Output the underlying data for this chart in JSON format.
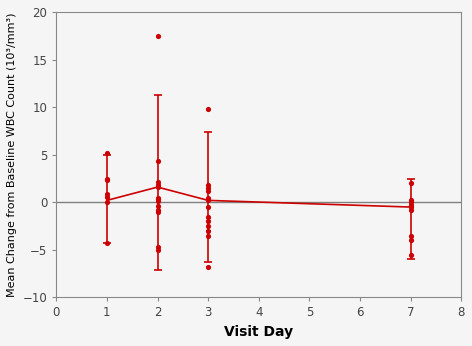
{
  "visit_days": [
    1,
    2,
    3,
    7
  ],
  "mean_values": [
    0.2,
    1.6,
    0.2,
    -0.5
  ],
  "error_upper": [
    4.8,
    9.7,
    7.2,
    3.0
  ],
  "error_lower": [
    4.5,
    8.7,
    6.5,
    5.5
  ],
  "scatter_day1": [
    5.2,
    2.5,
    2.3,
    0.9,
    0.6,
    0.0,
    -4.3
  ],
  "scatter_day2": [
    17.5,
    4.3,
    2.1,
    1.8,
    1.6,
    0.5,
    0.3,
    0.1,
    -0.4,
    -0.8,
    -1.0,
    -4.7,
    -5.0
  ],
  "scatter_day3": [
    9.8,
    1.8,
    1.5,
    1.2,
    0.5,
    0.3,
    0.2,
    -0.5,
    -1.5,
    -2.0,
    -2.5,
    -3.0,
    -3.5,
    -6.8
  ],
  "scatter_day7": [
    2.0,
    0.2,
    0.0,
    -0.3,
    -0.5,
    -0.8,
    -3.5,
    -4.0,
    -5.5
  ],
  "line_color": "#cc0000",
  "dot_color": "#cc0000",
  "hline_color": "#808080",
  "bg_color": "#f0f0f0",
  "xlim": [
    0,
    8
  ],
  "ylim": [
    -10,
    20
  ],
  "yticks": [
    -10,
    -5,
    0,
    5,
    10,
    15,
    20
  ],
  "xticks": [
    0,
    1,
    2,
    3,
    4,
    5,
    6,
    7,
    8
  ],
  "xlabel": "Visit Day",
  "ylabel": "Mean Change from Baseline WBC Count (10³/mm³)"
}
